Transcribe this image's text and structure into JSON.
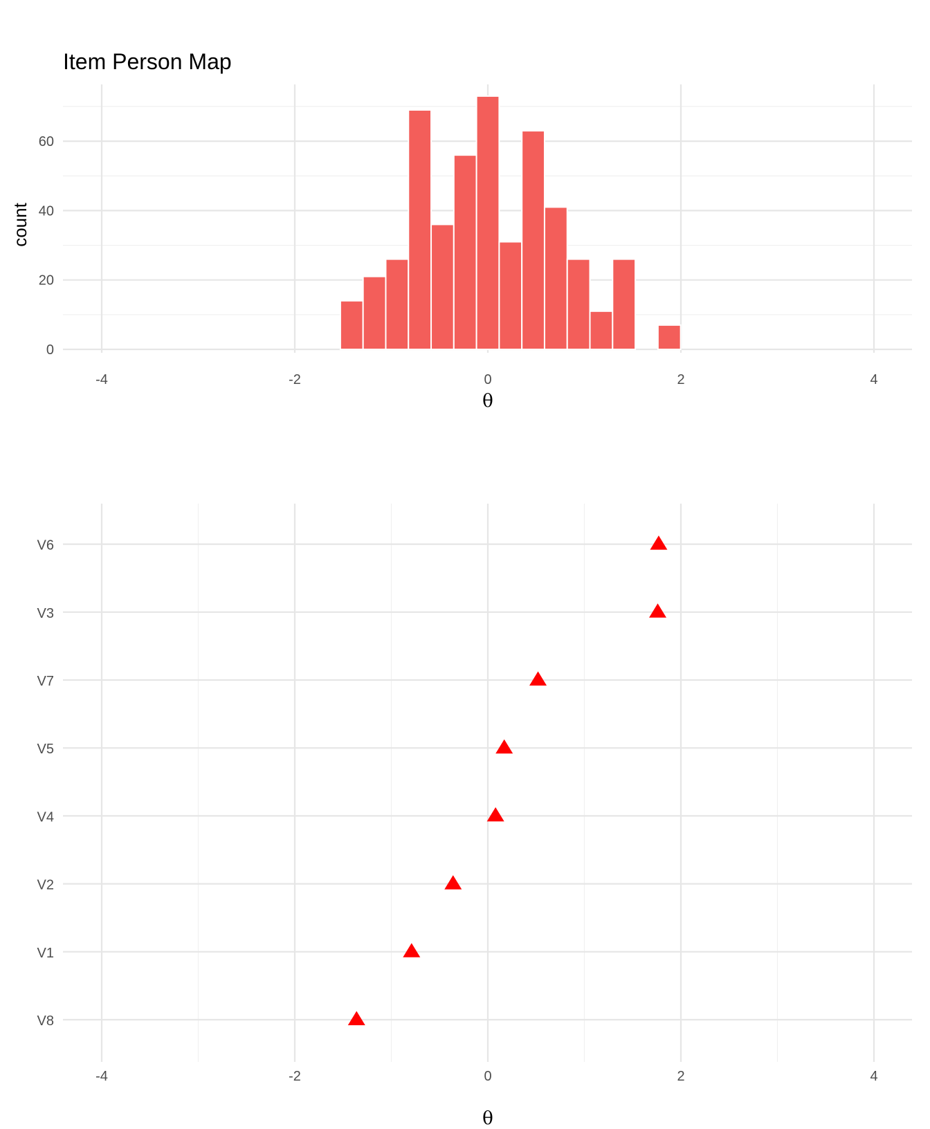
{
  "title": "Item Person Map",
  "colors": {
    "bar_fill": "#F35E5A",
    "bar_edge": "#FFFFFF",
    "marker": "#FF0000",
    "grid_major": "#E6E6E6",
    "grid_minor": "#F0F0F0"
  },
  "chart_data": [
    {
      "type": "bar",
      "subtype": "histogram",
      "title": "Item Person Map",
      "xlabel": "θ",
      "ylabel": "count",
      "xlim": [
        -4.1,
        4.1
      ],
      "ylim": [
        0,
        76
      ],
      "x_ticks": [
        -4,
        -2,
        0,
        2,
        4
      ],
      "x_tick_labels": [
        "-4",
        "-2",
        "0",
        "2",
        "4"
      ],
      "y_ticks": [
        0,
        20,
        40,
        60
      ],
      "y_tick_labels": [
        "0",
        "20",
        "40",
        "60"
      ],
      "grid": true,
      "bin_width": 0.235,
      "bin_centers": [
        -1.41,
        -1.175,
        -0.94,
        -0.705,
        -0.47,
        -0.235,
        0.0,
        0.235,
        0.47,
        0.705,
        0.94,
        1.175,
        1.41,
        1.645,
        1.88
      ],
      "values": [
        14,
        21,
        26,
        69,
        36,
        56,
        73,
        31,
        63,
        41,
        26,
        11,
        26,
        0,
        7
      ]
    },
    {
      "type": "scatter",
      "marker": "triangle",
      "xlabel": "θ",
      "ylabel": "",
      "xlim": [
        -4.1,
        4.1
      ],
      "x_ticks": [
        -4,
        -2,
        0,
        2,
        4
      ],
      "x_tick_labels": [
        "-4",
        "-2",
        "0",
        "2",
        "4"
      ],
      "grid": true,
      "categories": [
        "V8",
        "V1",
        "V2",
        "V4",
        "V5",
        "V7",
        "V3",
        "V6"
      ],
      "values": [
        -1.36,
        -0.79,
        -0.36,
        0.08,
        0.17,
        0.52,
        1.76,
        1.77
      ]
    }
  ]
}
